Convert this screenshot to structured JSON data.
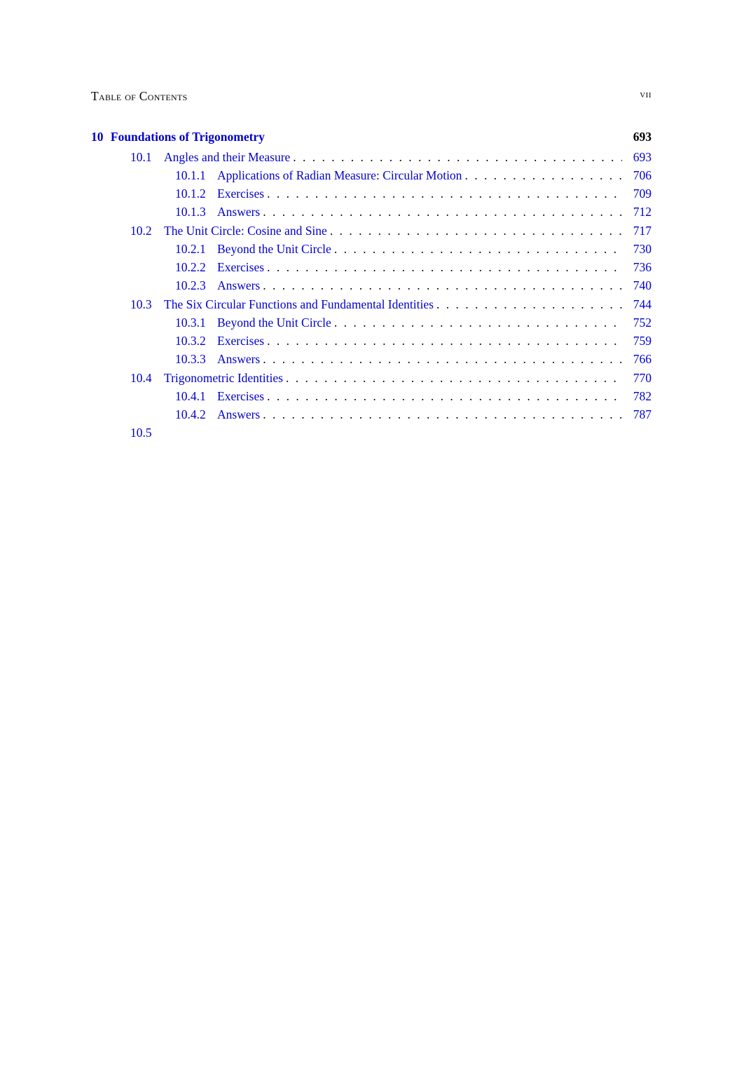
{
  "running_head": {
    "left": "Table of Contents",
    "right": "vii"
  },
  "colors": {
    "link": "#0000cc",
    "text": "#000000",
    "bg": "#ffffff"
  },
  "toc": [
    {
      "kind": "chapter",
      "num": "10",
      "title": "Foundations of Trigonometry",
      "page": "693"
    },
    {
      "kind": "section",
      "num": "10.1",
      "title": "Angles and their Measure",
      "page": "693"
    },
    {
      "kind": "subsection",
      "num": "10.1.1",
      "title": "Applications of Radian Measure: Circular Motion",
      "page": "706"
    },
    {
      "kind": "subsection",
      "num": "10.1.2",
      "title": "Exercises",
      "page": "709"
    },
    {
      "kind": "subsection",
      "num": "10.1.3",
      "title": "Answers",
      "page": "712"
    },
    {
      "kind": "section",
      "num": "10.2",
      "title": "The Unit Circle: Cosine and Sine",
      "page": "717"
    },
    {
      "kind": "subsection",
      "num": "10.2.1",
      "title": "Beyond the Unit Circle",
      "page": "730"
    },
    {
      "kind": "subsection",
      "num": "10.2.2",
      "title": "Exercises",
      "page": "736"
    },
    {
      "kind": "subsection",
      "num": "10.2.3",
      "title": "Answers",
      "page": "740"
    },
    {
      "kind": "section",
      "num": "10.3",
      "title": "The Six Circular Functions and Fundamental Identities",
      "page": "744"
    },
    {
      "kind": "subsection",
      "num": "10.3.1",
      "title": "Beyond the Unit Circle",
      "page": "752"
    },
    {
      "kind": "subsection",
      "num": "10.3.2",
      "title": "Exercises",
      "page": "759"
    },
    {
      "kind": "subsection",
      "num": "10.3.3",
      "title": "Answers",
      "page": "766"
    },
    {
      "kind": "section",
      "num": "10.4",
      "title": "Trigonometric Identities",
      "page": "770"
    },
    {
      "kind": "subsection",
      "num": "10.4.1",
      "title": "Exercises",
      "page": "782"
    },
    {
      "kind": "subsection",
      "num": "10.4.2",
      "title": "Answers",
      "page": "787"
    },
    {
      "kind": "section",
      "num": "10.5",
      "title": "",
      "page": ""
    }
  ]
}
